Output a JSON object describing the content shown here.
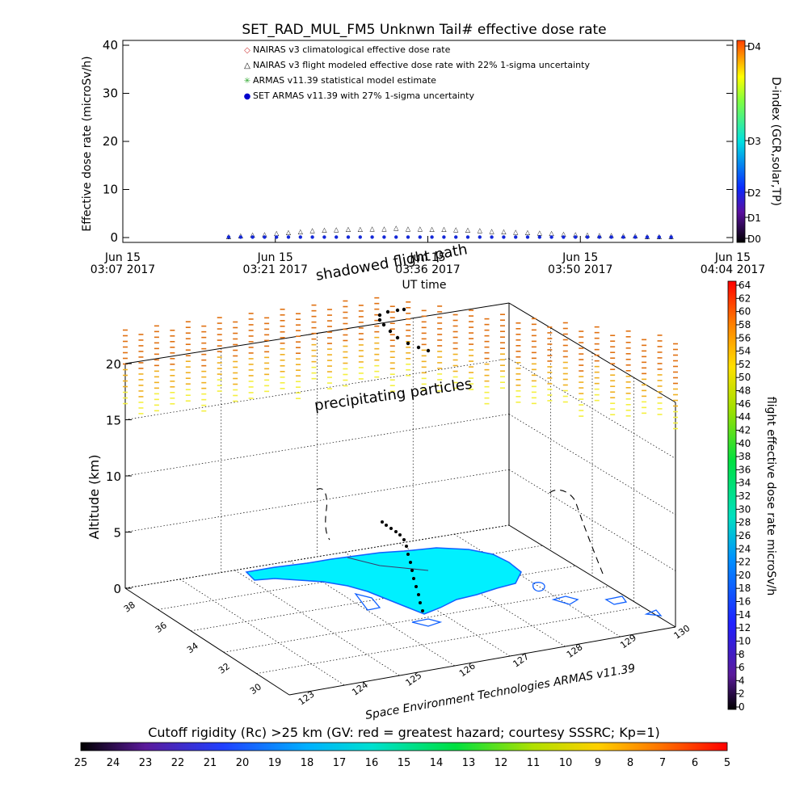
{
  "title": "SET_RAD_MUL_FM5 Unknwn Tail#  effective dose rate",
  "chart_data": [
    {
      "type": "line",
      "ylabel": "Effective dose rate (microSv/h)",
      "xlabel": "UT time",
      "ylim": [
        0,
        40
      ],
      "yticks": [
        0,
        10,
        20,
        30,
        40
      ],
      "x_ticks": [
        {
          "day": "Jun 15",
          "time": "03:07 2017"
        },
        {
          "day": "Jun 15",
          "time": "03:21 2017"
        },
        {
          "day": "Jun 15",
          "time": "03:36 2017"
        },
        {
          "day": "Jun 15",
          "time": "03:50 2017"
        },
        {
          "day": "Jun 15",
          "time": "04:04 2017"
        }
      ],
      "legend": [
        {
          "symbol": "◇",
          "color": "#cc3333",
          "text": "NAIRAS v3 climatological effective dose rate"
        },
        {
          "symbol": "△",
          "color": "#000000",
          "text": "NAIRAS v3 flight modeled effective dose rate with 22% 1-sigma uncertainty"
        },
        {
          "symbol": "✳",
          "color": "#33aa33",
          "text": "ARMAS v11.39 statistical model estimate"
        },
        {
          "symbol": "●",
          "color": "#0000cc",
          "text": "SET ARMAS v11.39 with 27% 1-sigma uncertainty"
        }
      ],
      "x_minutes": [
        17,
        19,
        21,
        23,
        25,
        27,
        29,
        31,
        33,
        35,
        37,
        39,
        41,
        43,
        45,
        47,
        49,
        51,
        53,
        55,
        57,
        59,
        61,
        63,
        65,
        67,
        69,
        71,
        73,
        75,
        77,
        79,
        81,
        83,
        85,
        87,
        89,
        91
      ],
      "series": [
        {
          "name": "NAIRAS v3 flight modeled effective dose rate with 22% 1-sigma uncertainty",
          "values": [
            0.2,
            0.3,
            0.5,
            0.6,
            0.8,
            1.0,
            1.2,
            1.4,
            1.5,
            1.6,
            1.7,
            1.7,
            1.8,
            1.8,
            1.9,
            1.8,
            1.8,
            1.7,
            1.7,
            1.6,
            1.5,
            1.4,
            1.3,
            1.2,
            1.1,
            1.0,
            0.9,
            0.8,
            0.7,
            0.6,
            0.5,
            0.4,
            0.4,
            0.3,
            0.3,
            0.2,
            0.2,
            0.2
          ]
        },
        {
          "name": "SET ARMAS v11.39 with 27% 1-sigma uncertainty",
          "values": [
            0.1,
            0.1,
            0.1,
            0.1,
            0.1,
            0.1,
            0.1,
            0.1,
            0.1,
            0.1,
            0.1,
            0.1,
            0.1,
            0.1,
            0.1,
            0.1,
            0.1,
            0.1,
            0.1,
            0.1,
            0.1,
            0.1,
            0.1,
            0.1,
            0.1,
            0.1,
            0.1,
            0.1,
            0.1,
            0.1,
            0.1,
            0.1,
            0.1,
            0.1,
            0.1,
            0.1,
            0.1,
            0.1
          ]
        }
      ],
      "right_colorbar": {
        "label": "D-index (GCR,solar,TP)",
        "ticks": [
          "D4",
          "D3",
          "D2",
          "D1",
          "D0"
        ]
      }
    },
    {
      "type": "scatter",
      "ylabel": "Altitude (km)",
      "zticks": [
        0,
        5,
        10,
        15,
        20
      ],
      "lat_ticks": [
        38,
        36,
        34,
        32,
        30
      ],
      "lon_ticks": [
        123,
        124,
        125,
        126,
        127,
        128,
        129,
        130
      ],
      "annotations": [
        "shadowed flight path",
        "precipitating particles",
        "Space Environment Technologies ARMAS v11.39"
      ],
      "dose_colorbar": {
        "label": "flight effective dose rate microSv/h",
        "ticks": [
          0,
          2,
          4,
          6,
          8,
          10,
          12,
          14,
          16,
          18,
          20,
          22,
          24,
          26,
          28,
          30,
          32,
          34,
          36,
          38,
          40,
          42,
          44,
          46,
          48,
          50,
          52,
          54,
          56,
          58,
          60,
          62,
          64
        ]
      }
    },
    {
      "type": "heatmap",
      "title": "Cutoff rigidity (Rc) >25 km (GV: red = greatest hazard; courtesy SSSRC; Kp=1)",
      "ticks": [
        25,
        24,
        23,
        22,
        21,
        20,
        19,
        18,
        17,
        16,
        15,
        14,
        13,
        12,
        11,
        10,
        9,
        8,
        7,
        6,
        5
      ]
    }
  ]
}
